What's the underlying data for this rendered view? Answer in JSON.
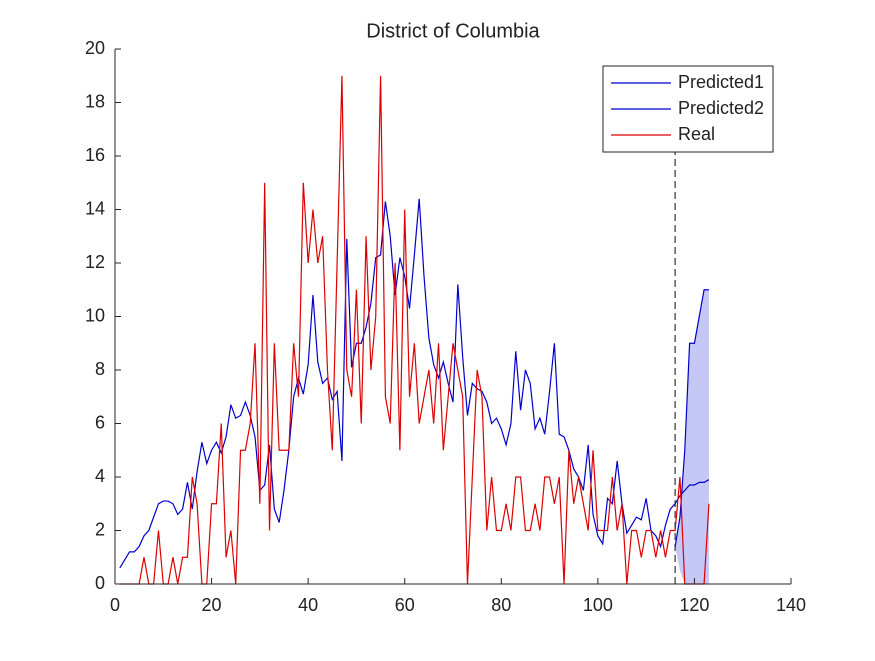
{
  "chart_data": {
    "type": "line",
    "title": "District of Columbia",
    "xlim": [
      0,
      140
    ],
    "xticks": [
      0,
      20,
      40,
      60,
      80,
      100,
      120,
      140
    ],
    "ylim": [
      0,
      20
    ],
    "yticks": [
      0,
      2,
      4,
      6,
      8,
      10,
      12,
      14,
      16,
      18,
      20
    ],
    "legend": "northeast",
    "vline": {
      "x": 116,
      "color": "#333333",
      "style": "dashed"
    },
    "series": [
      {
        "name": "Predicted1",
        "color": "#0000cc",
        "x": [
          1,
          2,
          3,
          4,
          5,
          6,
          7,
          8,
          9,
          10,
          11,
          12,
          13,
          14,
          15,
          16,
          17,
          18,
          19,
          20,
          21,
          22,
          23,
          24,
          25,
          26,
          27,
          28,
          29,
          30,
          31,
          32,
          33,
          34,
          35,
          36,
          37,
          38,
          39,
          40,
          41,
          42,
          43,
          44,
          45,
          46,
          47,
          48,
          49,
          50,
          51,
          52,
          53,
          54,
          55,
          56,
          57,
          58,
          59,
          60,
          61,
          62,
          63,
          64,
          65,
          66,
          67,
          68,
          69,
          70,
          71,
          72,
          73,
          74,
          75,
          76,
          77,
          78,
          79,
          80,
          81,
          82,
          83,
          84,
          85,
          86,
          87,
          88,
          89,
          90,
          91,
          92,
          93,
          94,
          95,
          96,
          97,
          98,
          99,
          100,
          101,
          102,
          103,
          104,
          105,
          106,
          107,
          108,
          109,
          110,
          111,
          112,
          113,
          114,
          115,
          116,
          117,
          118,
          119,
          120,
          121,
          122,
          123
        ],
        "values": [
          0.6,
          0.9,
          1.2,
          1.2,
          1.4,
          1.8,
          2,
          2.5,
          3,
          3.1,
          3.1,
          3,
          2.6,
          2.8,
          3.8,
          2.8,
          4.2,
          5.3,
          4.5,
          5,
          5.3,
          4.9,
          5.5,
          6.7,
          6.2,
          6.3,
          6.8,
          6.3,
          5.5,
          3.5,
          3.7,
          5.2,
          2.8,
          2.3,
          3.5,
          5,
          7,
          7.7,
          7.1,
          8.2,
          10.8,
          8.3,
          7.5,
          7.7,
          6.9,
          7.2,
          4.6,
          12.9,
          8.1,
          9,
          9,
          9.6,
          10.5,
          12.2,
          12.3,
          14.3,
          13,
          10.8,
          12.2,
          11.5,
          10.3,
          12.3,
          14.4,
          11.5,
          9.2,
          8.2,
          7.7,
          8.3,
          7.5,
          6.8,
          11.2,
          8.5,
          6.3,
          7.5,
          7.3,
          7.2,
          6.8,
          6,
          6.2,
          5.8,
          5.2,
          6,
          8.7,
          6.5,
          8,
          7.5,
          5.8,
          6.2,
          5.6,
          7.2,
          9,
          5.6,
          5.5,
          5,
          4.3,
          4,
          3.5,
          5.2,
          2.6,
          1.8,
          1.5,
          3.2,
          3,
          4.6,
          3,
          1.9,
          2.2,
          2.5,
          2.4,
          3.2,
          2,
          1.8,
          1.4,
          2.2,
          2.8,
          3,
          3.3,
          3.5,
          3.7,
          3.7,
          3.8,
          3.8,
          3.9
        ]
      },
      {
        "name": "Predicted2",
        "color": "#0000cc",
        "x": [
          116,
          117,
          118,
          119,
          120,
          121,
          122,
          123
        ],
        "values": [
          1.4,
          2.5,
          5,
          9,
          9,
          10,
          11,
          11
        ],
        "band_lower": [
          1.4,
          0.5,
          0,
          0,
          0,
          0,
          0,
          0
        ],
        "band_color": "#c5c8f7"
      },
      {
        "name": "Real",
        "color": "#dd0000",
        "x": [
          1,
          2,
          3,
          4,
          5,
          6,
          7,
          8,
          9,
          10,
          11,
          12,
          13,
          14,
          15,
          16,
          17,
          18,
          19,
          20,
          21,
          22,
          23,
          24,
          25,
          26,
          27,
          28,
          29,
          30,
          31,
          32,
          33,
          34,
          35,
          36,
          37,
          38,
          39,
          40,
          41,
          42,
          43,
          44,
          45,
          46,
          47,
          48,
          49,
          50,
          51,
          52,
          53,
          54,
          55,
          56,
          57,
          58,
          59,
          60,
          61,
          62,
          63,
          64,
          65,
          66,
          67,
          68,
          69,
          70,
          71,
          72,
          73,
          74,
          75,
          76,
          77,
          78,
          79,
          80,
          81,
          82,
          83,
          84,
          85,
          86,
          87,
          88,
          89,
          90,
          91,
          92,
          93,
          94,
          95,
          96,
          97,
          98,
          99,
          100,
          101,
          102,
          103,
          104,
          105,
          106,
          107,
          108,
          109,
          110,
          111,
          112,
          113,
          114,
          115,
          116,
          117,
          118,
          119,
          120,
          121,
          122,
          123
        ],
        "values": [
          0,
          0,
          0,
          0,
          0,
          1,
          0,
          0,
          2,
          0,
          0,
          1,
          0,
          1,
          1,
          4,
          3,
          0,
          0,
          3,
          3,
          6,
          1,
          2,
          0,
          5,
          5,
          6,
          9,
          3,
          15,
          2,
          9,
          5,
          5,
          5,
          9,
          7,
          15,
          12,
          14,
          12,
          13,
          8,
          5,
          12,
          19,
          8,
          7,
          11,
          6,
          13,
          8,
          10,
          19,
          7,
          6,
          12,
          5,
          14,
          7,
          9,
          6,
          7,
          8,
          6,
          9,
          5,
          7,
          9,
          8,
          7,
          0,
          4,
          8,
          7,
          2,
          4,
          2,
          2,
          3,
          2,
          4,
          4,
          2,
          2,
          3,
          2,
          4,
          4,
          3,
          4,
          0,
          5,
          3,
          4,
          3,
          2,
          5,
          2,
          2,
          2,
          4,
          2,
          3,
          0,
          2,
          2,
          1,
          2,
          2,
          1,
          2,
          1,
          2,
          2,
          4,
          0,
          0,
          0,
          0,
          0,
          3
        ]
      }
    ]
  }
}
